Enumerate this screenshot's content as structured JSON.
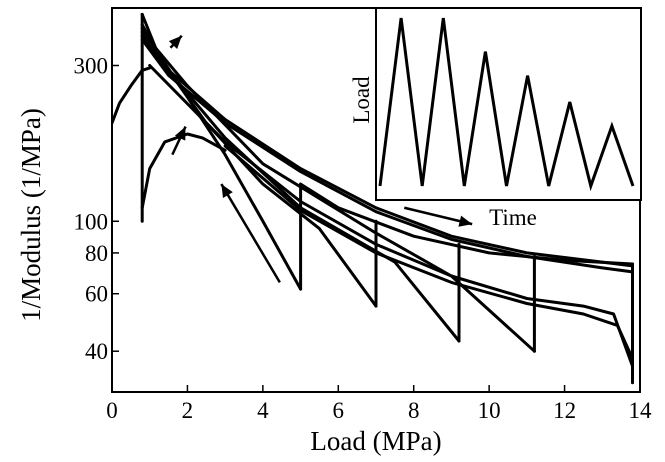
{
  "chart_data": [
    {
      "type": "line",
      "xlabel": "Load (MPa)",
      "ylabel": "1/Modulus (1/MPa)",
      "xlim": [
        0,
        14
      ],
      "ylim": [
        30,
        450
      ],
      "yscale": "log",
      "xticks": [
        "0",
        "2",
        "4",
        "6",
        "8",
        "10",
        "12",
        "14"
      ],
      "xtick_values": [
        0,
        2,
        4,
        6,
        8,
        10,
        12,
        14
      ],
      "yticks": [
        "40",
        "60",
        "80",
        "100",
        "300"
      ],
      "ytick_values": [
        40,
        60,
        80,
        100,
        300
      ],
      "grid": false,
      "legend": "none",
      "series": [
        {
          "values": [
            [
              0,
              200
            ],
            [
              0.2,
              230
            ],
            [
              0.5,
              260
            ],
            [
              0.8,
              290
            ],
            [
              1.0,
              295
            ]
          ]
        },
        {
          "values": [
            [
              0.8,
              100
            ],
            [
              0.8,
              430
            ]
          ]
        },
        {
          "values": [
            [
              0.8,
              110
            ],
            [
              1.0,
              145
            ],
            [
              1.4,
              175
            ],
            [
              2.0,
              185
            ],
            [
              2.4,
              180
            ],
            [
              3.0,
              165
            ]
          ]
        },
        {
          "values": [
            [
              0.8,
              430
            ],
            [
              1.2,
              330
            ],
            [
              2,
              240
            ],
            [
              3,
              160
            ],
            [
              4,
              100
            ],
            [
              5,
              62
            ]
          ]
        },
        {
          "values": [
            [
              5,
              62
            ],
            [
              5,
              130
            ]
          ]
        },
        {
          "values": [
            [
              0.8,
              400
            ],
            [
              1.4,
              300
            ],
            [
              2.5,
              200
            ],
            [
              4,
              130
            ],
            [
              5.5,
              95
            ],
            [
              7,
              55
            ]
          ]
        },
        {
          "values": [
            [
              7,
              55
            ],
            [
              7,
              100
            ]
          ]
        },
        {
          "values": [
            [
              0.8,
              390
            ],
            [
              1.6,
              280
            ],
            [
              3,
              180
            ],
            [
              5,
              110
            ],
            [
              7.5,
              75
            ],
            [
              9.2,
              43
            ]
          ]
        },
        {
          "values": [
            [
              9.2,
              43
            ],
            [
              9.2,
              85
            ]
          ]
        },
        {
          "values": [
            [
              0.8,
              380
            ],
            [
              2,
              260
            ],
            [
              4,
              150
            ],
            [
              7,
              92
            ],
            [
              9,
              68
            ],
            [
              11.2,
              40
            ]
          ]
        },
        {
          "values": [
            [
              11.2,
              40
            ],
            [
              11.2,
              78
            ]
          ]
        },
        {
          "values": [
            [
              0.8,
              370
            ],
            [
              1.5,
              290
            ],
            [
              3,
              205
            ],
            [
              5,
              145
            ],
            [
              7,
              110
            ],
            [
              9,
              90
            ],
            [
              11,
              80
            ],
            [
              13,
              75
            ],
            [
              13.8,
              73
            ]
          ]
        },
        {
          "values": [
            [
              0.8,
              360
            ],
            [
              1.5,
              280
            ],
            [
              3,
              200
            ],
            [
              5,
              142
            ],
            [
              7,
              107
            ],
            [
              9,
              88
            ],
            [
              11,
              78
            ],
            [
              13,
              72
            ],
            [
              13.8,
              70
            ]
          ]
        },
        {
          "values": [
            [
              5,
              130
            ],
            [
              6,
              110
            ],
            [
              8,
              90
            ],
            [
              10,
              80
            ],
            [
              12,
              76
            ],
            [
              13.8,
              74
            ]
          ]
        },
        {
          "values": [
            [
              1,
              300
            ],
            [
              3,
              175
            ],
            [
              5,
              115
            ],
            [
              7,
              85
            ],
            [
              9,
              68
            ],
            [
              11,
              58
            ],
            [
              12.5,
              55
            ],
            [
              13.3,
              52
            ],
            [
              13.8,
              36
            ]
          ]
        },
        {
          "values": [
            [
              3,
              170
            ],
            [
              5,
              108
            ],
            [
              7,
              80
            ],
            [
              9,
              65
            ],
            [
              11,
              56
            ],
            [
              12.5,
              52
            ],
            [
              13.4,
              48
            ],
            [
              13.8,
              38
            ]
          ]
        },
        {
          "values": [
            [
              13.8,
              32
            ],
            [
              13.8,
              74
            ]
          ]
        }
      ],
      "annotations": [
        "arrow up-right near peak",
        "arrow up-right near minimum",
        "arrow up-left along unloading",
        "arrow right near Time"
      ]
    },
    {
      "type": "line",
      "xlabel": "Time",
      "ylabel": "Load",
      "grid": false,
      "legend": "none",
      "values": [
        [
          0,
          0
        ],
        [
          1,
          14
        ],
        [
          2,
          0
        ],
        [
          3,
          14
        ],
        [
          4,
          0
        ],
        [
          5,
          11.2
        ],
        [
          6,
          0
        ],
        [
          7,
          9.2
        ],
        [
          8,
          0
        ],
        [
          9,
          7
        ],
        [
          10,
          0
        ],
        [
          11,
          5
        ],
        [
          12,
          0
        ]
      ]
    }
  ]
}
